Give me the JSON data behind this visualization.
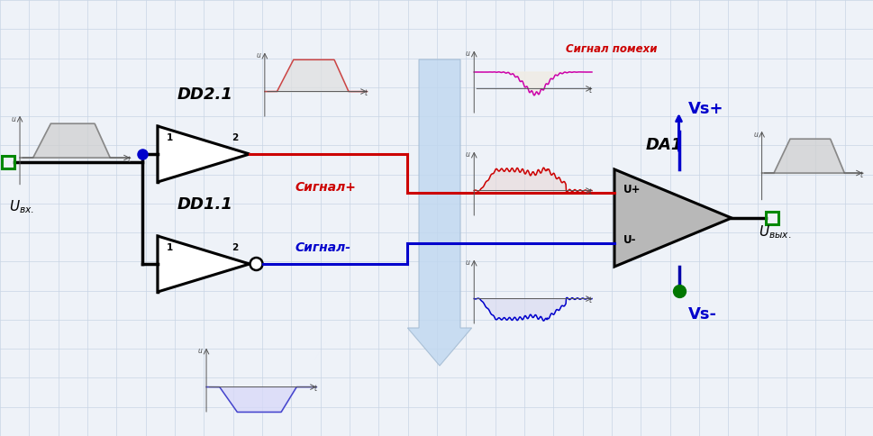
{
  "bg_color": "#eef2f8",
  "grid_color": "#c8d4e4",
  "colors": {
    "red": "#cc0000",
    "blue": "#0000cc",
    "dark_blue": "#0000aa",
    "green_sq": "#008800",
    "green_dot": "#007700",
    "black": "#000000",
    "gate_fill": "#ffffff",
    "amp_fill": "#c0c0c0",
    "arrow_fill": "#c0d8f0",
    "arrow_edge": "#a0b8d0",
    "noise_line": "#cc00aa",
    "noise_fill": "#f0ece4",
    "signal_gray": "#d0d0d0",
    "signal_red": "#cc0000",
    "signal_blue": "#0000cc"
  },
  "labels": {
    "dd21": "DD2.1",
    "dd11": "DD1.1",
    "da1": "DA1",
    "sig_plus": "Сигнал+",
    "sig_minus": "Сигнал-",
    "sig_noise": "Сигнал помехи",
    "vs_plus": "Vs+",
    "vs_minus": "Vs-",
    "u_plus": "U+",
    "u_minus": "U-",
    "pin1": "1",
    "pin2": "2"
  }
}
